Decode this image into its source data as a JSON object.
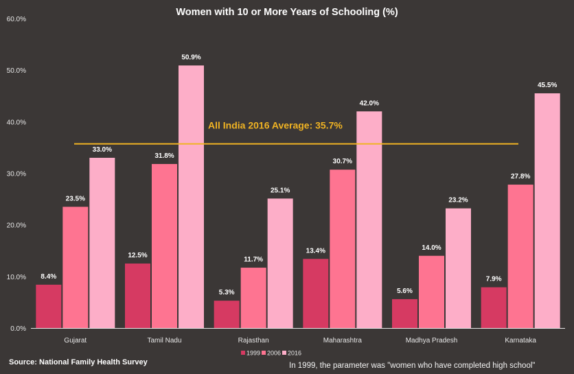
{
  "chart_data": {
    "type": "bar",
    "title": "Women with 10 or More Years of Schooling (%)",
    "xlabel": "",
    "ylabel": "",
    "ylim": [
      0,
      60
    ],
    "yticks": [
      0,
      10,
      20,
      30,
      40,
      50,
      60
    ],
    "ytick_labels": [
      "0.0%",
      "10.0%",
      "20.0%",
      "30.0%",
      "40.0%",
      "50.0%",
      "60.0%"
    ],
    "grid": false,
    "categories": [
      "Gujarat",
      "Tamil Nadu",
      "Rajasthan",
      "Maharashtra",
      "Madhya Pradesh",
      "Karnataka"
    ],
    "series": [
      {
        "name": "1999",
        "color": "#d63a62",
        "values": [
          8.4,
          12.5,
          5.3,
          13.4,
          5.6,
          7.9
        ],
        "labels": [
          "8.4%",
          "12.5%",
          "5.3%",
          "13.4%",
          "5.6%",
          "7.9%"
        ]
      },
      {
        "name": "2006",
        "color": "#fe7491",
        "values": [
          23.5,
          31.8,
          11.7,
          30.7,
          14.0,
          27.8
        ],
        "labels": [
          "23.5%",
          "31.8%",
          "11.7%",
          "30.7%",
          "14.0%",
          "27.8%"
        ]
      },
      {
        "name": "2016",
        "color": "#fdaec8",
        "values": [
          33.0,
          50.9,
          25.1,
          42.0,
          23.2,
          45.5
        ],
        "labels": [
          "33.0%",
          "50.9%",
          "25.1%",
          "42.0%",
          "23.2%",
          "45.5%"
        ]
      }
    ],
    "reference_line": {
      "label": "All India 2016 Average: 35.7%",
      "value": 35.7,
      "color": "#f0b323"
    },
    "legend": {
      "placement": "bottom-center",
      "entries": [
        "1999",
        "2006",
        "2016"
      ]
    },
    "annotations": {
      "source": "Source:  National  Family  Health  Survey",
      "note": "In 1999, the parameter was \"women who have completed high school\""
    }
  },
  "background_color": "#3b3736"
}
